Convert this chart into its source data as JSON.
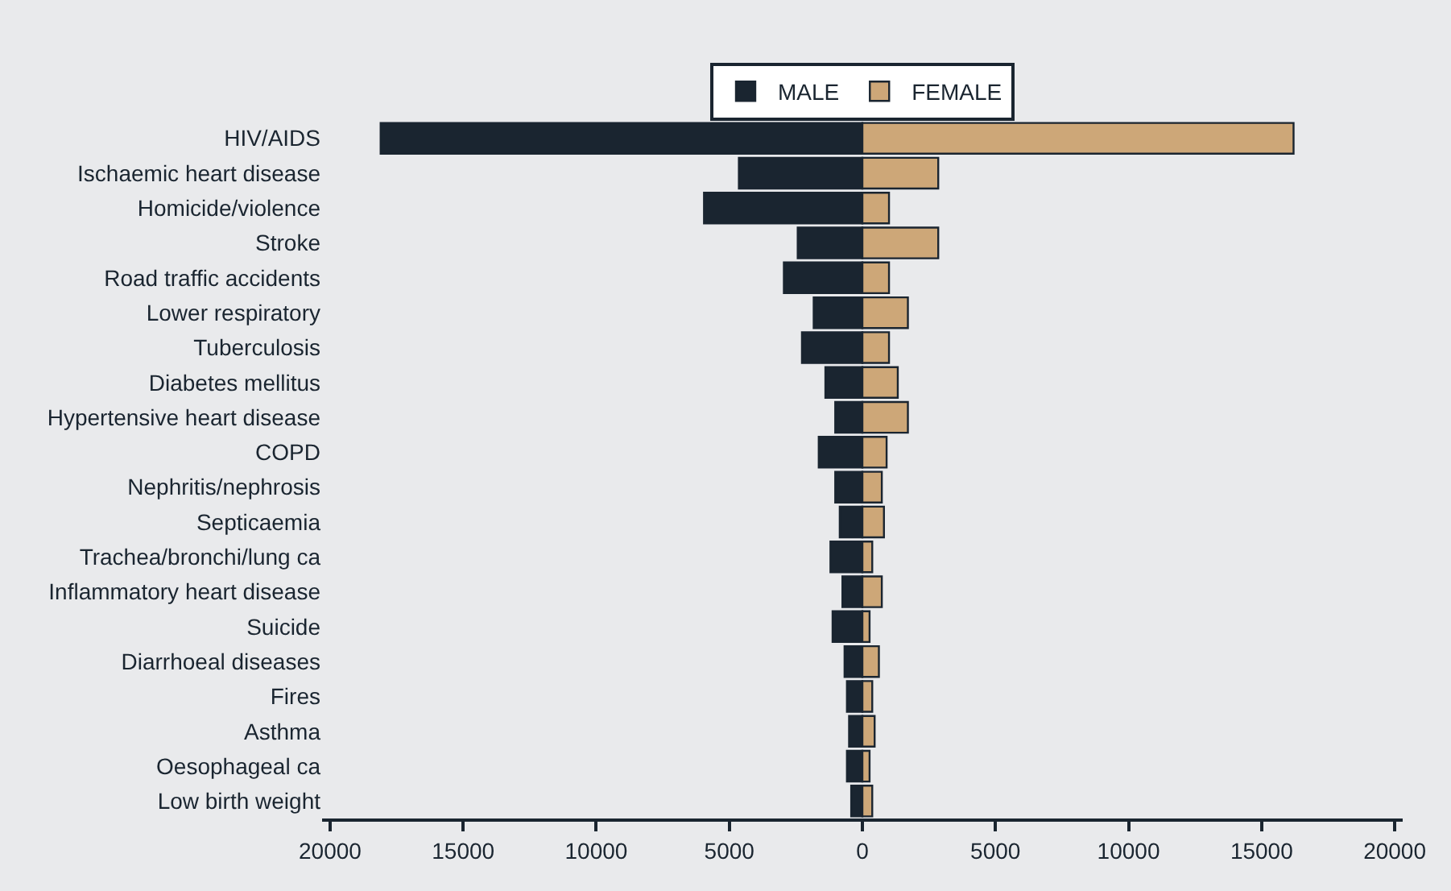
{
  "chart_data": {
    "type": "bar",
    "orientation": "horizontal",
    "stacked": true,
    "legend": "top",
    "grid": false,
    "categories": [
      "HIV/AIDS",
      "Ischaemic heart disease",
      "Homicide/violence",
      "Stroke",
      "Road traffic accidents",
      "Lower respiratory",
      "Tuberculosis",
      "Diabetes mellitus",
      "Hypertensive heart disease",
      "COPD",
      "Nephritis/nephrosis",
      "Septicaemia",
      "Trachea/bronchi/lung ca",
      "Inflammatory heart disease",
      "Suicide",
      "Diarrhoeal diseases",
      "Fires",
      "Asthma",
      "Oesophageal ca",
      "Low birth weight"
    ],
    "series": [
      {
        "name": "MALE",
        "color": "#1a2530",
        "values": [
          -18100,
          -4640,
          -5950,
          -2430,
          -2950,
          -1830,
          -2270,
          -1390,
          -1020,
          -1640,
          -1020,
          -850,
          -1200,
          -750,
          -1120,
          -670,
          -580,
          -500,
          -580,
          -420
        ]
      },
      {
        "name": "FEMALE",
        "color": "#cda778",
        "values": [
          16200,
          2850,
          1000,
          2850,
          1000,
          1710,
          1000,
          1330,
          1710,
          910,
          730,
          810,
          370,
          730,
          270,
          620,
          370,
          460,
          270,
          370
        ]
      }
    ],
    "xlim": [
      -20300,
      20300
    ],
    "xticks": [
      {
        "value": -20000,
        "label": "20000"
      },
      {
        "value": -15000,
        "label": "15000"
      },
      {
        "value": -10000,
        "label": "10000"
      },
      {
        "value": -5000,
        "label": "5000"
      },
      0,
      5000,
      10000,
      15000,
      20000
    ]
  }
}
